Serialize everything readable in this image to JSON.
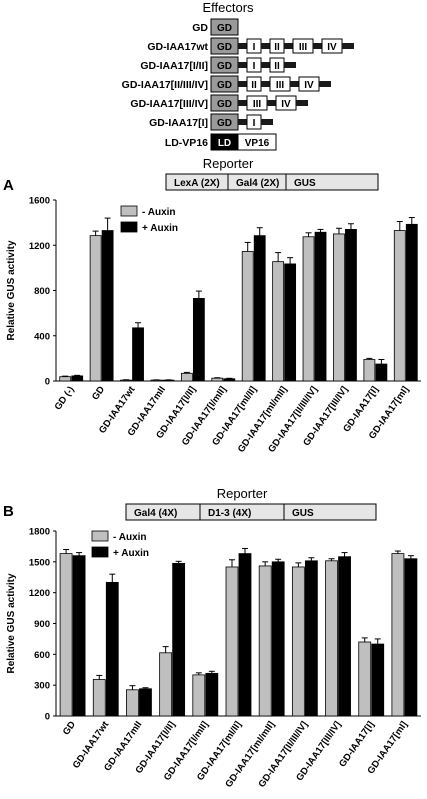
{
  "effectors": {
    "title": "Effectors",
    "constructs": [
      {
        "label": "GD",
        "parts": [
          "GD"
        ]
      },
      {
        "label": "GD-IAA17wt",
        "parts": [
          "GD",
          "I",
          "II",
          "III",
          "IV"
        ]
      },
      {
        "label": "GD-IAA17[I/II]",
        "parts": [
          "GD",
          "I",
          "II"
        ]
      },
      {
        "label": "GD-IAA17[II/III/IV]",
        "parts": [
          "GD",
          "II",
          "III",
          "IV"
        ]
      },
      {
        "label": "GD-IAA17[III/IV]",
        "parts": [
          "GD",
          "III",
          "IV"
        ]
      },
      {
        "label": "GD-IAA17[I]",
        "parts": [
          "GD",
          "I"
        ]
      },
      {
        "label": "LD-VP16",
        "parts": [
          "LD",
          "VP16"
        ]
      }
    ]
  },
  "colors": {
    "gd_domain": "#9a9a9a",
    "ld_domain": "#000000",
    "linker": "#1a1a1a",
    "minus_auxin": "#bfbfbf",
    "plus_auxin": "#000000",
    "reporter_box": "#e6e6e6"
  },
  "chart_data": [
    {
      "panel": "A",
      "type": "bar",
      "reporter_title": "Reporter",
      "reporter_parts": [
        "LexA (2X)",
        "Gal4 (2X)",
        "GUS"
      ],
      "ylabel": "Relative GUS activity",
      "ylim": [
        0,
        1600
      ],
      "yticks": [
        "0",
        "400",
        "800",
        "1200",
        "1600"
      ],
      "legend_position": "top-left",
      "categories": [
        "GD (-)",
        "GD",
        "GD-IAA17wt",
        "GD-IAA17mII",
        "GD-IAA17[I/II]",
        "GD-IAA17[I/mII]",
        "GD-IAA17[mI/II]",
        "GD-IAA17[mI/mII]",
        "GD-IAA17[II/III/IV]",
        "GD-IAA17[III/IV]",
        "GD-IAA17[I]",
        "GD-IAA17[mI]"
      ],
      "series": [
        {
          "name": "- Auxin",
          "values": [
            38,
            1285,
            8,
            8,
            68,
            25,
            1145,
            1055,
            1275,
            1300,
            190,
            1330
          ]
        },
        {
          "name": "+ Auxin",
          "values": [
            45,
            1330,
            470,
            8,
            730,
            20,
            1285,
            1035,
            1315,
            1340,
            150,
            1385
          ]
        }
      ],
      "errors": [
        [
          5,
          40,
          3,
          2,
          8,
          4,
          80,
          80,
          35,
          50,
          10,
          80
        ],
        [
          5,
          110,
          45,
          2,
          65,
          4,
          70,
          55,
          25,
          50,
          40,
          60
        ]
      ]
    },
    {
      "panel": "B",
      "type": "bar",
      "reporter_title": "Reporter",
      "reporter_parts": [
        "Gal4 (4X)",
        "D1-3 (4X)",
        "GUS"
      ],
      "ylabel": "Relative GUS activity",
      "ylim": [
        0,
        1800
      ],
      "yticks": [
        "0",
        "300",
        "600",
        "900",
        "1200",
        "1500",
        "1800"
      ],
      "legend_position": "top-left",
      "categories": [
        "GD",
        "GD-IAA17wt",
        "GD-IAA17mII",
        "GD-IAA17[I/II]",
        "GD-IAA17[I/mII]",
        "GD-IAA17[mI/II]",
        "GD-IAA17[mI/mII]",
        "GD-IAA17[II/III/IV]",
        "GD-IAA17[III/IV]",
        "GD-IAA17[I]",
        "GD-IAA17[mI]"
      ],
      "series": [
        {
          "name": "- Auxin",
          "values": [
            1580,
            355,
            255,
            615,
            400,
            1450,
            1460,
            1450,
            1510,
            720,
            1580
          ]
        },
        {
          "name": "+ Auxin",
          "values": [
            1560,
            1300,
            265,
            1485,
            415,
            1580,
            1500,
            1510,
            1550,
            700,
            1530
          ]
        }
      ],
      "errors": [
        [
          40,
          40,
          40,
          60,
          20,
          70,
          40,
          40,
          20,
          40,
          25
        ],
        [
          30,
          80,
          10,
          20,
          20,
          50,
          25,
          30,
          40,
          50,
          30
        ]
      ]
    }
  ]
}
